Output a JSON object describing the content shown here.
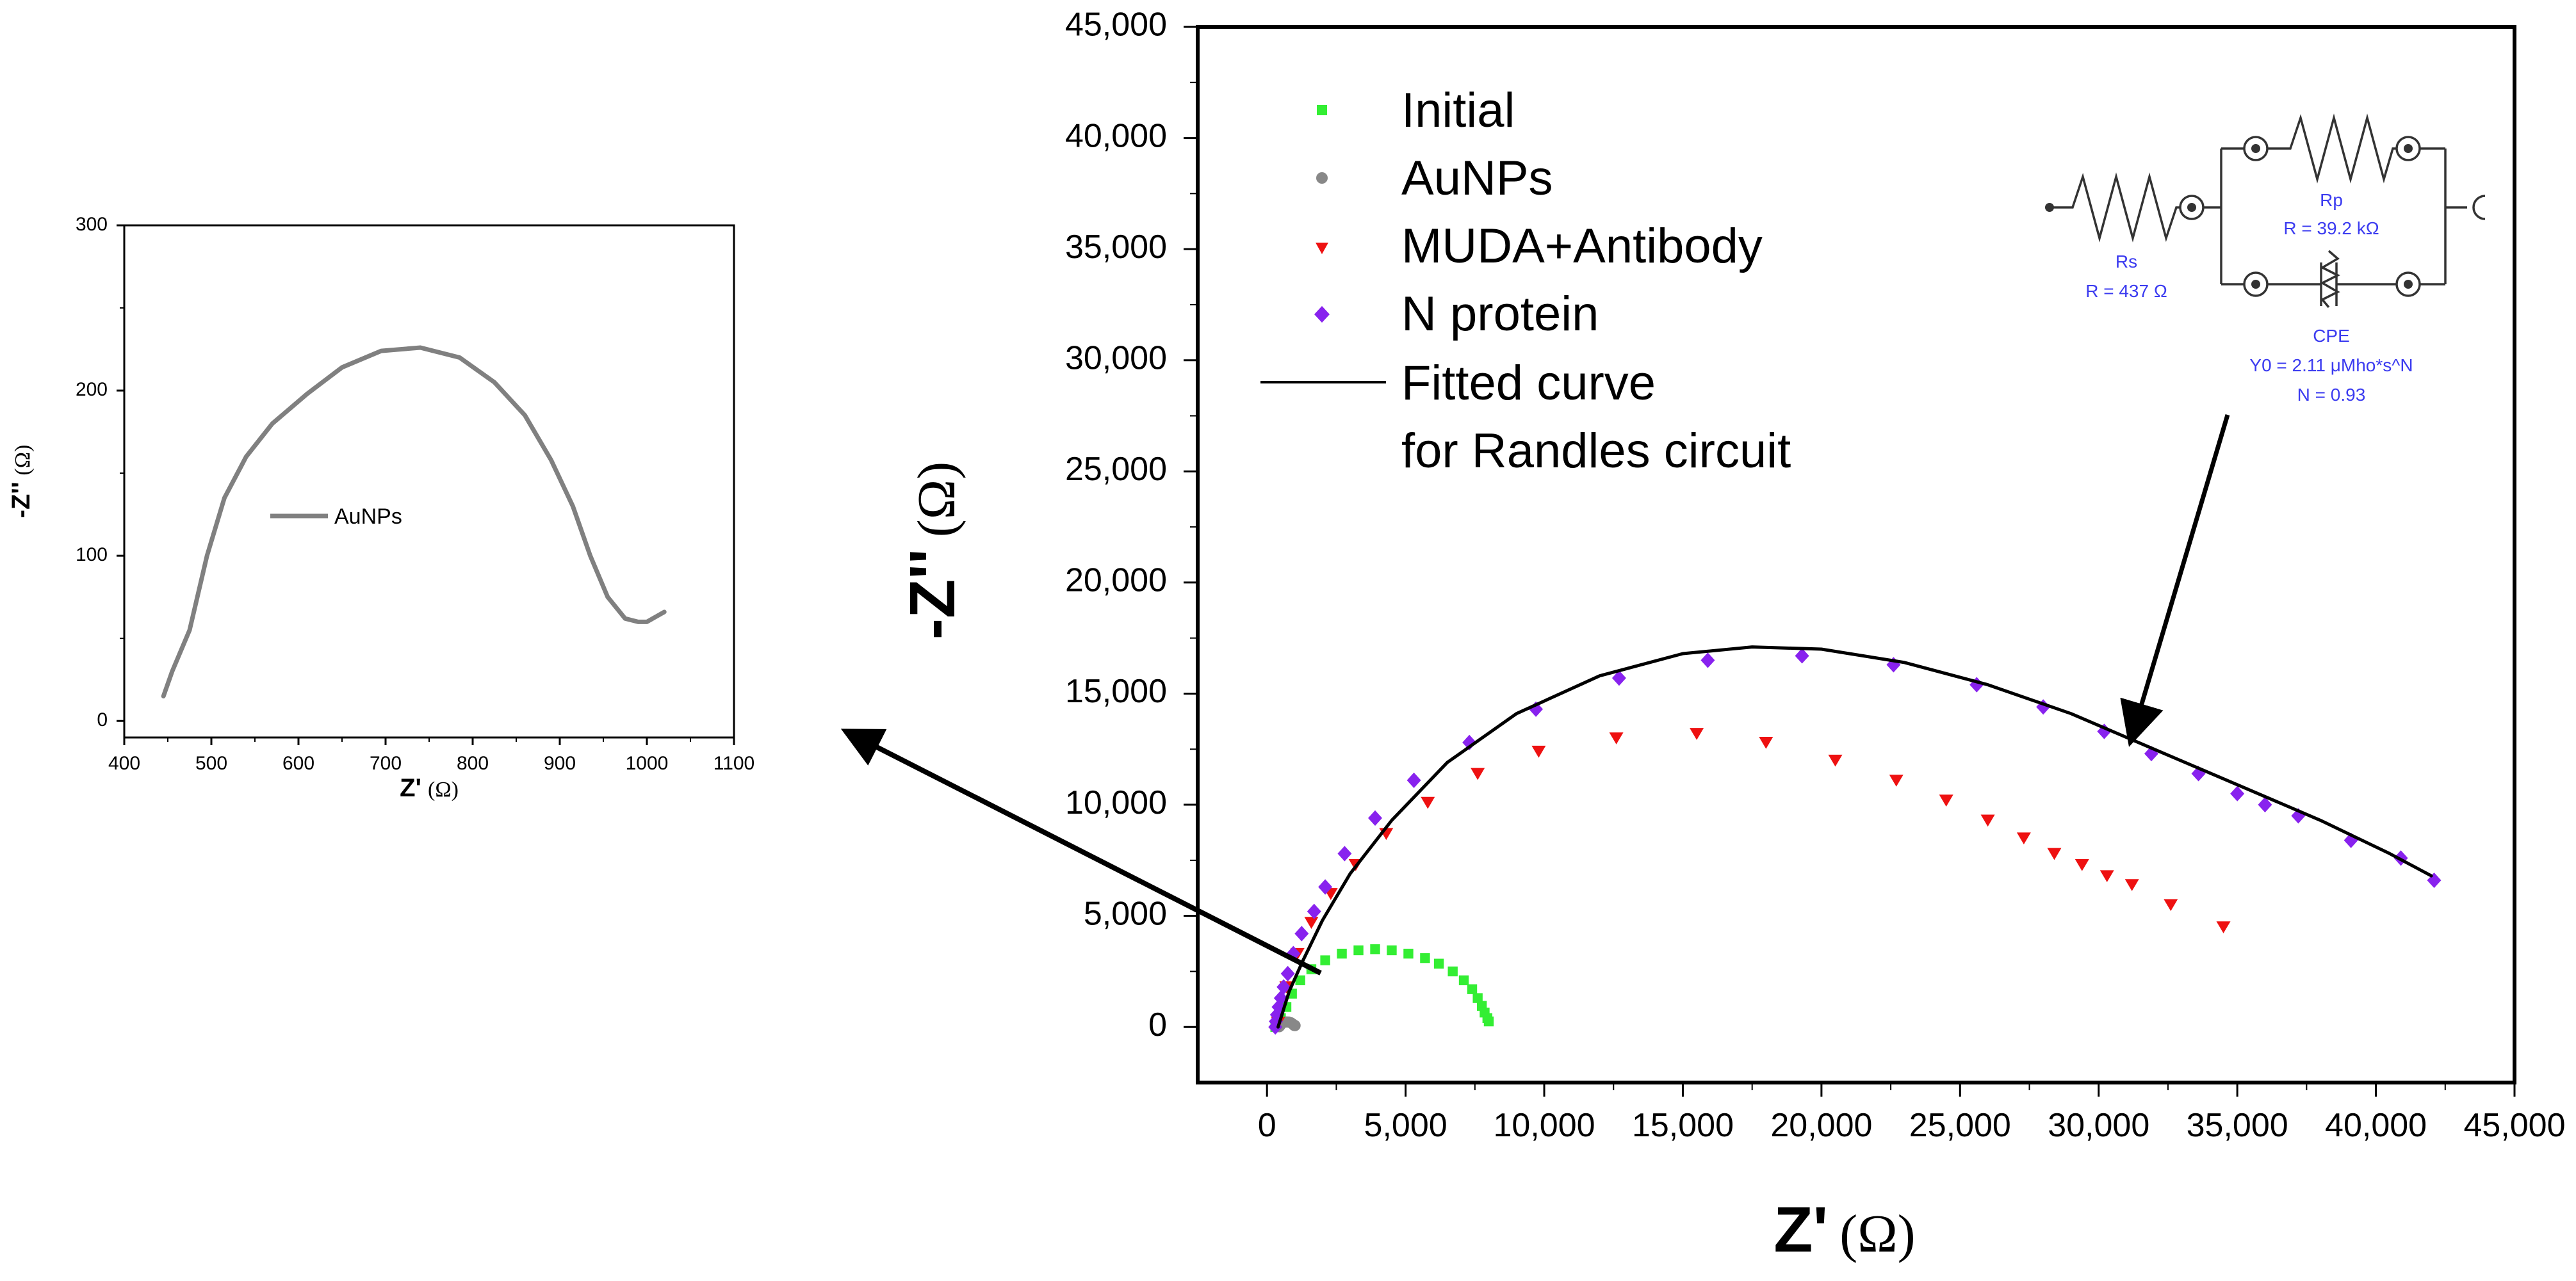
{
  "chart_data": [
    {
      "id": "main",
      "type": "scatter",
      "title": "",
      "xlabel": "Z'",
      "xunit": "(Ω)",
      "ylabel": "-Z''",
      "yunit": "(Ω)",
      "xlim": [
        -2500,
        45000
      ],
      "ylim": [
        -2500,
        45000
      ],
      "xticks": [
        0,
        5000,
        10000,
        15000,
        20000,
        25000,
        30000,
        35000,
        40000,
        45000
      ],
      "xtick_labels": [
        "0",
        "5,000",
        "10,000",
        "15,000",
        "20,000",
        "25,000",
        "30,000",
        "35,000",
        "40,000",
        "45,000"
      ],
      "yticks": [
        0,
        5000,
        10000,
        15000,
        20000,
        25000,
        30000,
        35000,
        40000,
        45000
      ],
      "ytick_labels": [
        "0",
        "5,000",
        "10,000",
        "15,000",
        "20,000",
        "25,000",
        "30,000",
        "35,000",
        "40,000",
        "45,000"
      ],
      "grid": false,
      "legend_position": "top-left",
      "series": [
        {
          "name": "Initial",
          "marker": "square",
          "color": "#33ee33",
          "x": [
            300,
            500,
            700,
            900,
            1200,
            1600,
            2100,
            2700,
            3300,
            3900,
            4500,
            5100,
            5700,
            6200,
            6700,
            7100,
            7400,
            7600,
            7750,
            7850,
            7950,
            8000
          ],
          "y": [
            0,
            400,
            900,
            1500,
            2100,
            2600,
            3000,
            3300,
            3450,
            3500,
            3450,
            3300,
            3100,
            2850,
            2500,
            2100,
            1700,
            1300,
            950,
            650,
            400,
            250
          ]
        },
        {
          "name": "AuNPs",
          "marker": "circle",
          "color": "#888888",
          "x": [
            440,
            470,
            510,
            560,
            620,
            700,
            780,
            860,
            930,
            980,
            1010
          ],
          "y": [
            15,
            60,
            130,
            180,
            210,
            225,
            220,
            190,
            130,
            70,
            65
          ]
        },
        {
          "name": "MUDA+Antibody",
          "marker": "triangle-down",
          "color": "#ee1111",
          "x": [
            400,
            700,
            1100,
            1600,
            2300,
            3200,
            4300,
            5800,
            7600,
            9800,
            12600,
            15500,
            18000,
            20500,
            22700,
            24500,
            26000,
            27300,
            28400,
            29400,
            30300,
            31200,
            32600,
            34500
          ],
          "y": [
            200,
            1800,
            3300,
            4700,
            6000,
            7300,
            8700,
            10100,
            11400,
            12400,
            13000,
            13200,
            12800,
            12000,
            11100,
            10200,
            9300,
            8500,
            7800,
            7300,
            6800,
            6400,
            5500,
            4500
          ]
        },
        {
          "name": "N protein",
          "marker": "diamond",
          "color": "#8822ee",
          "x": [
            300,
            320,
            360,
            420,
            500,
            600,
            750,
            950,
            1250,
            1700,
            2100,
            2800,
            3900,
            5300,
            7300,
            9700,
            12700,
            15900,
            19300,
            22600,
            25600,
            28000,
            30200,
            31900,
            33600,
            35000,
            36000,
            37200,
            39100,
            40900,
            42100
          ],
          "y": [
            0,
            250,
            550,
            900,
            1300,
            1800,
            2400,
            3300,
            4200,
            5200,
            6300,
            7800,
            9400,
            11100,
            12800,
            14300,
            15700,
            16500,
            16700,
            16300,
            15400,
            14400,
            13300,
            12300,
            11400,
            10500,
            10000,
            9500,
            8400,
            7600,
            6600
          ]
        },
        {
          "name": "Fitted curve",
          "name_line2": "for Randles circuit",
          "marker": "line",
          "color": "#000000",
          "x": [
            400,
            800,
            1300,
            2000,
            3000,
            4500,
            6500,
            9000,
            12000,
            15000,
            17500,
            20000,
            23000,
            26000,
            29000,
            32000,
            35000,
            38000,
            40500,
            42000
          ],
          "y": [
            0,
            1600,
            3000,
            4800,
            6900,
            9300,
            11900,
            14100,
            15800,
            16800,
            17100,
            17000,
            16400,
            15400,
            14100,
            12500,
            10900,
            9300,
            7800,
            6800
          ]
        }
      ],
      "annotation": {
        "circuit": {
          "rs_name": "Rs",
          "rs_value": "R = 437 Ω",
          "rp_name": "Rp",
          "rp_value": "R = 39.2 kΩ",
          "cpe_name": "CPE",
          "cpe_y0": "Y0 = 2.11 μMho*s^N",
          "cpe_n": "N = 0.93"
        }
      }
    },
    {
      "id": "inset",
      "type": "line",
      "title": "",
      "xlabel": "Z'",
      "xunit": "(Ω)",
      "ylabel": "-Z''",
      "yunit": "(Ω)",
      "xlim": [
        400,
        1100
      ],
      "ylim": [
        -10,
        300
      ],
      "xticks": [
        400,
        500,
        600,
        700,
        800,
        900,
        1000,
        1100
      ],
      "xtick_labels": [
        "400",
        "500",
        "600",
        "700",
        "800",
        "900",
        "1000",
        "1100"
      ],
      "yticks": [
        0,
        100,
        200,
        300
      ],
      "ytick_labels": [
        "0",
        "100",
        "200",
        "300"
      ],
      "grid": false,
      "legend_position": "center-left",
      "series": [
        {
          "name": "AuNPs",
          "color": "#808080",
          "x": [
            445,
            455,
            475,
            495,
            515,
            540,
            570,
            610,
            650,
            695,
            740,
            785,
            825,
            860,
            890,
            915,
            935,
            955,
            975,
            990,
            1000,
            1010,
            1020
          ],
          "y": [
            15,
            30,
            55,
            100,
            135,
            160,
            180,
            198,
            214,
            224,
            226,
            220,
            205,
            185,
            158,
            130,
            100,
            75,
            62,
            60,
            60,
            63,
            66
          ]
        }
      ]
    }
  ]
}
